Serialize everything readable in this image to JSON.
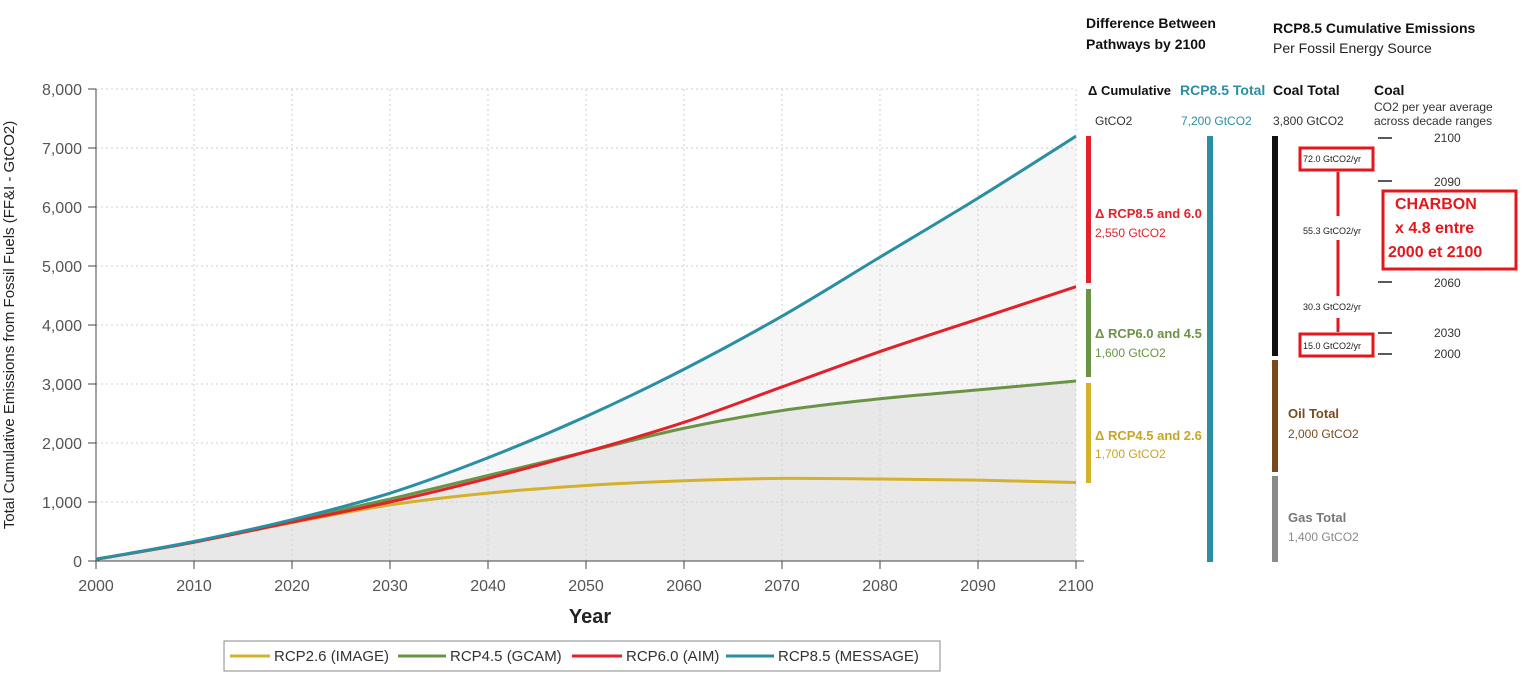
{
  "chart_data": {
    "type": "line",
    "ylabel": "Total Cumulative Emissions from Fossil Fuels (FF&I - GtCO2)",
    "xlabel": "Year",
    "xlim": [
      2000,
      2100
    ],
    "ylim": [
      0,
      8000
    ],
    "x_ticks": [
      "2000",
      "2010",
      "2020",
      "2030",
      "2040",
      "2050",
      "2060",
      "2070",
      "2080",
      "2090",
      "2100"
    ],
    "y_ticks": [
      "0",
      "1,000",
      "2,000",
      "3,000",
      "4,000",
      "5,000",
      "6,000",
      "7,000",
      "8,000"
    ],
    "grid": true,
    "x": [
      2000,
      2010,
      2020,
      2030,
      2040,
      2050,
      2060,
      2070,
      2080,
      2090,
      2100
    ],
    "series": [
      {
        "name": "RCP2.6 (IMAGE)",
        "color": "#d4b12a",
        "values": [
          30,
          320,
          650,
          950,
          1150,
          1280,
          1360,
          1400,
          1390,
          1370,
          1330
        ]
      },
      {
        "name": "RCP4.5 (GCAM)",
        "color": "#6a9445",
        "values": [
          30,
          320,
          680,
          1050,
          1450,
          1850,
          2250,
          2550,
          2750,
          2900,
          3050
        ]
      },
      {
        "name": "RCP6.0 (AIM)",
        "color": "#e3212b",
        "values": [
          30,
          320,
          660,
          1000,
          1400,
          1850,
          2350,
          2950,
          3550,
          4100,
          4650
        ]
      },
      {
        "name": "RCP8.5 (MESSAGE)",
        "color": "#2b8fa3",
        "values": [
          30,
          330,
          700,
          1150,
          1750,
          2450,
          3250,
          4150,
          5150,
          6150,
          7200
        ]
      }
    ]
  },
  "legend_items": [
    "RCP2.6 (IMAGE)",
    "RCP4.5 (GCAM)",
    "RCP6.0 (AIM)",
    "RCP8.5 (MESSAGE)"
  ],
  "panel": {
    "diff_title_1": "Difference Between",
    "diff_title_2": "Pathways by 2100",
    "src_title": "RCP8.5 Cumulative Emissions",
    "src_subtitle": "Per Fossil Energy Source",
    "delta_header": "Δ Cumulative",
    "delta_unit": "GtCO2",
    "rcp85_total_label": "RCP8.5 Total",
    "rcp85_total_value": "7,200 GtCO2",
    "coal_total_label": "Coal Total",
    "coal_total_value": "3,800 GtCO2",
    "coal_label": "Coal",
    "coal_desc_1": "CO2 per year average",
    "coal_desc_2": "across decade ranges",
    "d1_label": "Δ RCP8.5 and 6.0",
    "d1_value": "2,550 GtCO2",
    "d2_label": "Δ RCP6.0 and 4.5",
    "d2_value": "1,600 GtCO2",
    "d3_label": "Δ RCP4.5 and 2.6",
    "d3_value": "1,700 GtCO2",
    "oil_label": "Oil Total",
    "oil_value": "2,000 GtCO2",
    "gas_label": "Gas Total",
    "gas_value": "1,400 GtCO2",
    "rate_1": "72.0 GtCO2/yr",
    "rate_2": "55.3 GtCO2/yr",
    "rate_3": "30.3 GtCO2/yr",
    "rate_4": "15.0 GtCO2/yr",
    "years": [
      "2100",
      "2090",
      "2060",
      "2030",
      "2000"
    ]
  },
  "annotation": {
    "line1": "CHARBON",
    "line2": "x 4.8 entre",
    "line3": "2000 et 2100"
  },
  "colors": {
    "rcp26": "#d4b12a",
    "rcp45": "#6a9445",
    "rcp60": "#e3212b",
    "rcp85": "#2b8fa3",
    "coal": "#111111",
    "oil": "#7a4a1c",
    "gas": "#8a8a8a",
    "annotation": "#e3171c"
  }
}
